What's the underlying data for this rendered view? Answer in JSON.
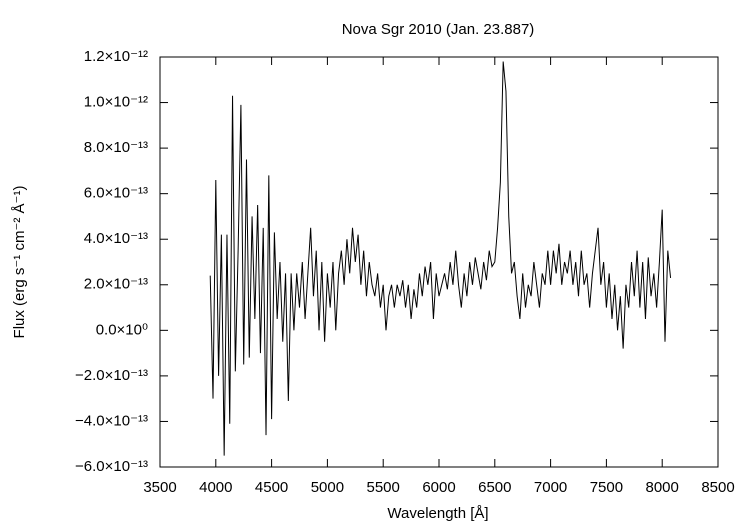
{
  "chart_data": {
    "type": "line",
    "title": "Nova Sgr 2010 (Jan. 23.887)",
    "x_label": "Wavelength [Å]",
    "y_label": "Flux (erg s⁻¹ cm⁻² Å⁻¹)",
    "color": "#000000",
    "xlim": [
      3500,
      8500
    ],
    "ylim": [
      -6e-13,
      1.2e-12
    ],
    "xticks": [
      3500,
      4000,
      4500,
      5000,
      5500,
      6000,
      6500,
      7000,
      7500,
      8000,
      8500
    ],
    "yticks": [
      {
        "value": -6e-13,
        "label": "−6.0×10⁻¹³"
      },
      {
        "value": -4e-13,
        "label": "−4.0×10⁻¹³"
      },
      {
        "value": -2e-13,
        "label": "−2.0×10⁻¹³"
      },
      {
        "value": 0,
        "label": "0.0×10⁰"
      },
      {
        "value": 2e-13,
        "label": "2.0×10⁻¹³"
      },
      {
        "value": 4e-13,
        "label": "4.0×10⁻¹³"
      },
      {
        "value": 6e-13,
        "label": "6.0×10⁻¹³"
      },
      {
        "value": 8e-13,
        "label": "8.0×10⁻¹³"
      },
      {
        "value": 1e-12,
        "label": "1.0×10⁻¹²"
      },
      {
        "value": 1.2e-12,
        "label": "1.2×10⁻¹²"
      }
    ],
    "x": [
      3950,
      3975,
      4000,
      4025,
      4050,
      4075,
      4100,
      4125,
      4150,
      4175,
      4200,
      4225,
      4250,
      4275,
      4300,
      4325,
      4350,
      4375,
      4400,
      4425,
      4450,
      4475,
      4500,
      4525,
      4550,
      4575,
      4600,
      4625,
      4650,
      4675,
      4700,
      4725,
      4750,
      4775,
      4800,
      4825,
      4850,
      4875,
      4900,
      4925,
      4950,
      4975,
      5000,
      5025,
      5050,
      5075,
      5100,
      5125,
      5150,
      5175,
      5200,
      5225,
      5250,
      5275,
      5300,
      5325,
      5350,
      5375,
      5400,
      5425,
      5450,
      5475,
      5500,
      5525,
      5550,
      5575,
      5600,
      5625,
      5650,
      5675,
      5700,
      5725,
      5750,
      5775,
      5800,
      5825,
      5850,
      5875,
      5900,
      5925,
      5950,
      5975,
      6000,
      6025,
      6050,
      6075,
      6100,
      6125,
      6150,
      6175,
      6200,
      6225,
      6250,
      6275,
      6300,
      6325,
      6350,
      6375,
      6400,
      6425,
      6450,
      6475,
      6500,
      6525,
      6550,
      6575,
      6600,
      6625,
      6650,
      6675,
      6700,
      6725,
      6750,
      6775,
      6800,
      6825,
      6850,
      6875,
      6900,
      6925,
      6950,
      6975,
      7000,
      7025,
      7050,
      7075,
      7100,
      7125,
      7150,
      7175,
      7200,
      7225,
      7250,
      7275,
      7300,
      7325,
      7350,
      7375,
      7400,
      7425,
      7450,
      7475,
      7500,
      7525,
      7550,
      7575,
      7600,
      7625,
      7650,
      7675,
      7700,
      7725,
      7750,
      7775,
      7800,
      7825,
      7850,
      7875,
      7900,
      7925,
      7950,
      7975,
      8000,
      8025,
      8050,
      8075
    ],
    "values": [
      2.4e-13,
      -3e-13,
      6.6e-13,
      -2e-13,
      4.2e-13,
      -5.5e-13,
      4.2e-13,
      -4.1e-13,
      1.03e-12,
      -1.8e-13,
      3.5e-13,
      9.9e-13,
      -1.5e-13,
      7.5e-13,
      -1.2e-13,
      5e-13,
      5e-14,
      5.5e-13,
      -1e-13,
      4.5e-13,
      -4.6e-13,
      6.8e-13,
      -3.9e-13,
      4.3e-13,
      5e-14,
      3e-13,
      -5e-14,
      2.5e-13,
      -3.1e-13,
      2.5e-13,
      0,
      2.5e-13,
      1e-13,
      3e-13,
      5e-14,
      2.5e-13,
      4.5e-13,
      1.5e-13,
      3.5e-13,
      0,
      3e-13,
      -5e-14,
      2.5e-13,
      1e-13,
      3e-13,
      0,
      2.5e-13,
      3.5e-13,
      2e-13,
      4e-13,
      2.5e-13,
      4.5e-13,
      3e-13,
      4.2e-13,
      2e-13,
      3.5e-13,
      1.5e-13,
      3e-13,
      2e-13,
      1.5e-13,
      2.5e-13,
      1e-13,
      2e-13,
      0,
      1.5e-13,
      2e-13,
      1e-13,
      2e-13,
      1.5e-13,
      2.2e-13,
      1e-13,
      2e-13,
      5e-14,
      1.8e-13,
      1e-13,
      2.5e-13,
      1.5e-13,
      2.8e-13,
      2e-13,
      3e-13,
      5e-14,
      2.5e-13,
      1.5e-13,
      2e-13,
      2.5e-13,
      1.8e-13,
      3e-13,
      2e-13,
      3.5e-13,
      2e-13,
      1e-13,
      2.5e-13,
      1.5e-13,
      3e-13,
      2e-13,
      3.2e-13,
      2.5e-13,
      1.8e-13,
      3e-13,
      2.2e-13,
      3.5e-13,
      2.8e-13,
      3e-13,
      4.5e-13,
      6.5e-13,
      1.18e-12,
      1.05e-12,
      5e-13,
      2.5e-13,
      3e-13,
      1.5e-13,
      5e-14,
      2.5e-13,
      1e-13,
      2e-13,
      1.5e-13,
      3e-13,
      2e-13,
      1e-13,
      2.5e-13,
      2e-13,
      3.5e-13,
      2e-13,
      3.5e-13,
      2.5e-13,
      3.8e-13,
      2e-13,
      3e-13,
      2.5e-13,
      3.5e-13,
      2e-13,
      3e-13,
      1.5e-13,
      3.5e-13,
      2e-13,
      2.5e-13,
      1e-13,
      2.5e-13,
      3.5e-13,
      4.5e-13,
      2e-13,
      3e-13,
      1e-13,
      2.5e-13,
      5e-14,
      2e-13,
      0,
      1.5e-13,
      -8e-14,
      2e-13,
      1e-13,
      3e-13,
      1.5e-13,
      3.5e-13,
      1e-13,
      3e-13,
      5e-14,
      3.2e-13,
      1.5e-13,
      2.5e-13,
      1e-13,
      3e-13,
      5.3e-13,
      -5e-14,
      3.5e-13,
      2.3e-13
    ]
  }
}
